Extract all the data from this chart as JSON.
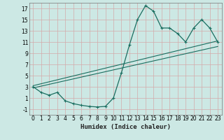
{
  "xlabel": "Humidex (Indice chaleur)",
  "bg_color": "#cce8e4",
  "grid_color": "#d4aaaa",
  "line_color": "#1a6e60",
  "xlim": [
    -0.5,
    23.5
  ],
  "ylim": [
    -2,
    18
  ],
  "xticks": [
    0,
    1,
    2,
    3,
    4,
    5,
    6,
    7,
    8,
    9,
    10,
    11,
    12,
    13,
    14,
    15,
    16,
    17,
    18,
    19,
    20,
    21,
    22,
    23
  ],
  "yticks": [
    -1,
    1,
    3,
    5,
    7,
    9,
    11,
    13,
    15,
    17
  ],
  "curve1_x": [
    0,
    1,
    2,
    3,
    4,
    5,
    6,
    7,
    8,
    9,
    10,
    11,
    12,
    13,
    14,
    15,
    16,
    17,
    18,
    19,
    20,
    21,
    22,
    23
  ],
  "curve1_y": [
    3,
    2,
    1.5,
    2,
    0.5,
    0,
    -0.3,
    -0.5,
    -0.6,
    -0.5,
    1,
    5.5,
    10.5,
    15,
    17.5,
    16.5,
    13.5,
    13.5,
    12.5,
    11,
    13.5,
    15,
    13.5,
    11
  ],
  "line2_x": [
    0,
    23
  ],
  "line2_y": [
    2.8,
    10.2
  ],
  "line3_x": [
    0,
    23
  ],
  "line3_y": [
    3.2,
    11.2
  ],
  "tick_fontsize": 5.5,
  "xlabel_fontsize": 6.5
}
